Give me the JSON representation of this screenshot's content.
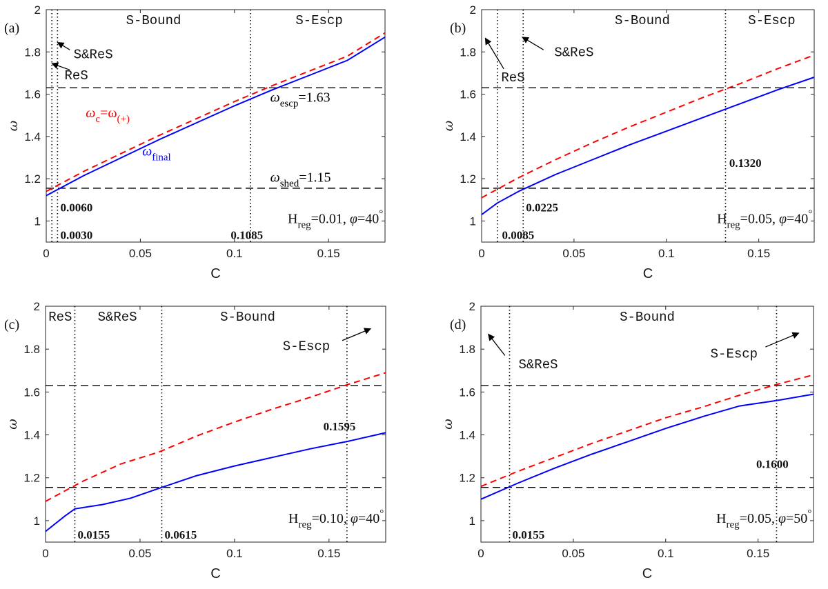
{
  "colors": {
    "omega_final": "#0000ff",
    "omega_c": "#ff0000",
    "guide": "#000000"
  },
  "chart_data": [
    {
      "type": "line",
      "panel_label": "(a)",
      "xlabel": "C",
      "ylabel": "ω",
      "xlim": [
        0,
        0.18
      ],
      "ylim": [
        0.9,
        2.0
      ],
      "xticks": [
        0,
        0.05,
        0.1,
        0.15
      ],
      "xtick_labels": [
        "0",
        "0.05",
        "0.1",
        "0.15"
      ],
      "yticks": [
        1.0,
        1.2,
        1.4,
        1.6,
        1.8,
        2.0
      ],
      "ytick_labels": [
        "1",
        "1.2",
        "1.4",
        "1.6",
        "1.8",
        "2"
      ],
      "hlines": [
        1.155,
        1.63
      ],
      "vlines": [
        0.003,
        0.006,
        0.1085
      ],
      "series": [
        {
          "name": "ω_final",
          "style": "solid",
          "color": "#0000ff",
          "x": [
            0,
            0.02,
            0.04,
            0.06,
            0.08,
            0.1,
            0.12,
            0.14,
            0.16,
            0.18
          ],
          "y": [
            1.12,
            1.215,
            1.3,
            1.385,
            1.465,
            1.545,
            1.62,
            1.69,
            1.76,
            1.87
          ]
        },
        {
          "name": "ω_c=ω_(+)",
          "style": "dashed",
          "color": "#ff0000",
          "x": [
            0,
            0.02,
            0.04,
            0.06,
            0.08,
            0.1,
            0.12,
            0.14,
            0.16,
            0.18
          ],
          "y": [
            1.14,
            1.235,
            1.32,
            1.405,
            1.485,
            1.565,
            1.64,
            1.71,
            1.78,
            1.89
          ]
        }
      ],
      "regions": [
        {
          "text": "S-Bound",
          "x": 0.057,
          "y": 1.955
        },
        {
          "text": "S-Escp",
          "x": 0.145,
          "y": 1.955
        }
      ],
      "annotations": [
        {
          "text": "S&ReS",
          "x": 0.025,
          "y": 1.79,
          "kind": "region"
        },
        {
          "text": "ReS",
          "x": 0.016,
          "y": 1.69,
          "kind": "region"
        },
        {
          "text": "0.0060",
          "x": 0.0075,
          "y": 1.065,
          "kind": "bold"
        },
        {
          "text": "0.0030",
          "x": 0.0075,
          "y": 0.935,
          "kind": "bold"
        },
        {
          "text": "0.1085",
          "x": 0.098,
          "y": 0.935,
          "kind": "bold"
        }
      ],
      "arrows": [
        {
          "from": [
            0.0125,
            1.81
          ],
          "to": [
            0.006,
            1.845
          ]
        },
        {
          "from": [
            0.0125,
            1.715
          ],
          "to": [
            0.003,
            1.745
          ]
        }
      ],
      "omega_labels": [
        {
          "symbol": "ω",
          "sub": "escp",
          "rest": "=1.63",
          "x": 0.119,
          "y": 1.565,
          "color": "#000000"
        },
        {
          "symbol": "ω",
          "sub": "shed",
          "rest": "=1.15",
          "x": 0.119,
          "y": 1.185,
          "color": "#000000"
        },
        {
          "symbol": "ω",
          "sub": "final",
          "rest": "",
          "x": 0.051,
          "y": 1.31,
          "color": "#0000ff"
        },
        {
          "symbol": "ω",
          "sub": "c",
          "rest": "=ω",
          "sub2": "(+)",
          "x": 0.021,
          "y": 1.49,
          "color": "#ff0000"
        }
      ],
      "params": {
        "h_sub": "reg",
        "h_val": "=0.01, ",
        "phi_val": "=40",
        "degree": "°",
        "x": 0.179,
        "y": 0.99
      }
    },
    {
      "type": "line",
      "panel_label": "(b)",
      "xlabel": "C",
      "ylabel": "ω",
      "xlim": [
        0,
        0.18
      ],
      "ylim": [
        0.9,
        2.0
      ],
      "xticks": [
        0,
        0.05,
        0.1,
        0.15
      ],
      "xtick_labels": [
        "0",
        "0.05",
        "0.1",
        "0.15"
      ],
      "yticks": [
        1.0,
        1.2,
        1.4,
        1.6,
        1.8,
        2.0
      ],
      "ytick_labels": [
        "1",
        "1.2",
        "1.4",
        "1.6",
        "1.8",
        "2"
      ],
      "hlines": [
        1.155,
        1.63
      ],
      "vlines": [
        0.0085,
        0.0225,
        0.132
      ],
      "series": [
        {
          "name": "ω_final",
          "style": "solid",
          "color": "#0000ff",
          "x": [
            0,
            0.0085,
            0.02,
            0.04,
            0.06,
            0.08,
            0.1,
            0.12,
            0.14,
            0.16,
            0.18
          ],
          "y": [
            1.03,
            1.085,
            1.14,
            1.22,
            1.29,
            1.36,
            1.425,
            1.49,
            1.555,
            1.62,
            1.68
          ]
        },
        {
          "name": "ω_c",
          "style": "dashed",
          "color": "#ff0000",
          "x": [
            0,
            0.02,
            0.04,
            0.06,
            0.08,
            0.1,
            0.12,
            0.14,
            0.16,
            0.18
          ],
          "y": [
            1.11,
            1.205,
            1.29,
            1.37,
            1.445,
            1.515,
            1.585,
            1.65,
            1.72,
            1.785
          ]
        }
      ],
      "regions": [
        {
          "text": "S-Bound",
          "x": 0.087,
          "y": 1.955
        },
        {
          "text": "S-Escp",
          "x": 0.157,
          "y": 1.955
        }
      ],
      "annotations": [
        {
          "text": "S&ReS",
          "x": 0.05,
          "y": 1.8,
          "kind": "region"
        },
        {
          "text": "ReS",
          "x": 0.017,
          "y": 1.68,
          "kind": "region"
        },
        {
          "text": "0.1320",
          "x": 0.134,
          "y": 1.275,
          "kind": "bold"
        },
        {
          "text": "0.0225",
          "x": 0.024,
          "y": 1.065,
          "kind": "bold"
        },
        {
          "text": "0.0085",
          "x": 0.011,
          "y": 0.935,
          "kind": "bold"
        }
      ],
      "arrows": [
        {
          "from": [
            0.0335,
            1.81
          ],
          "to": [
            0.022,
            1.87
          ]
        },
        {
          "from": [
            0.012,
            1.72
          ],
          "to": [
            0.002,
            1.865
          ]
        }
      ],
      "omega_labels": [],
      "params": {
        "h_sub": "reg",
        "h_val": "=0.05, ",
        "phi_val": "=40",
        "degree": "°",
        "x": 0.179,
        "y": 0.99
      }
    },
    {
      "type": "line",
      "panel_label": "(c)",
      "xlabel": "C",
      "ylabel": "ω",
      "xlim": [
        0,
        0.18
      ],
      "ylim": [
        0.9,
        2.0
      ],
      "xticks": [
        0,
        0.05,
        0.1,
        0.15
      ],
      "xtick_labels": [
        "0",
        "0.05",
        "0.1",
        "0.15"
      ],
      "yticks": [
        1.0,
        1.2,
        1.4,
        1.6,
        1.8,
        2.0
      ],
      "ytick_labels": [
        "1",
        "1.2",
        "1.4",
        "1.6",
        "1.8",
        "2"
      ],
      "hlines": [
        1.155,
        1.63
      ],
      "vlines": [
        0.0155,
        0.0615,
        0.1595
      ],
      "series": [
        {
          "name": "ω_final",
          "style": "solid",
          "color": "#0000ff",
          "x": [
            0,
            0.005,
            0.01,
            0.0155,
            0.03,
            0.045,
            0.0615,
            0.08,
            0.1,
            0.12,
            0.14,
            0.16,
            0.18
          ],
          "y": [
            0.95,
            0.985,
            1.02,
            1.055,
            1.075,
            1.105,
            1.155,
            1.21,
            1.255,
            1.295,
            1.335,
            1.37,
            1.41
          ]
        },
        {
          "name": "ω_c",
          "style": "dashed",
          "color": "#ff0000",
          "x": [
            0,
            0.02,
            0.04,
            0.06,
            0.08,
            0.1,
            0.12,
            0.14,
            0.16,
            0.18
          ],
          "y": [
            1.09,
            1.185,
            1.265,
            1.32,
            1.395,
            1.46,
            1.52,
            1.575,
            1.635,
            1.69
          ]
        }
      ],
      "regions": [
        {
          "text": "ReS",
          "x": 0.0078,
          "y": 1.955
        },
        {
          "text": "S&ReS",
          "x": 0.038,
          "y": 1.955
        },
        {
          "text": "S-Bound",
          "x": 0.107,
          "y": 1.955
        }
      ],
      "annotations": [
        {
          "text": "S-Escp",
          "x": 0.138,
          "y": 1.815,
          "kind": "region"
        },
        {
          "text": "0.1595",
          "x": 0.147,
          "y": 1.44,
          "kind": "bold"
        },
        {
          "text": "0.0155",
          "x": 0.017,
          "y": 0.935,
          "kind": "bold"
        },
        {
          "text": "0.0615",
          "x": 0.063,
          "y": 0.935,
          "kind": "bold"
        }
      ],
      "arrows": [
        {
          "from": [
            0.157,
            1.84
          ],
          "to": [
            0.172,
            1.895
          ]
        }
      ],
      "omega_labels": [],
      "params": {
        "h_sub": "reg",
        "h_val": "=0.10, ",
        "phi_val": "=40",
        "degree": "°",
        "x": 0.179,
        "y": 0.99
      }
    },
    {
      "type": "line",
      "panel_label": "(d)",
      "xlabel": "C",
      "ylabel": "ω",
      "xlim": [
        0,
        0.18
      ],
      "ylim": [
        0.9,
        2.0
      ],
      "xticks": [
        0,
        0.05,
        0.1,
        0.15
      ],
      "xtick_labels": [
        "0",
        "0.05",
        "0.1",
        "0.15"
      ],
      "yticks": [
        1.0,
        1.2,
        1.4,
        1.6,
        1.8,
        2.0
      ],
      "ytick_labels": [
        "1",
        "1.2",
        "1.4",
        "1.6",
        "1.8",
        "2"
      ],
      "hlines": [
        1.155,
        1.63
      ],
      "vlines": [
        0.0155,
        0.16
      ],
      "series": [
        {
          "name": "ω_final",
          "style": "solid",
          "color": "#0000ff",
          "x": [
            0,
            0.02,
            0.04,
            0.06,
            0.08,
            0.1,
            0.12,
            0.14,
            0.16,
            0.18
          ],
          "y": [
            1.1,
            1.175,
            1.245,
            1.31,
            1.37,
            1.43,
            1.485,
            1.535,
            1.56,
            1.59
          ]
        },
        {
          "name": "ω_c",
          "style": "dashed",
          "color": "#ff0000",
          "x": [
            0,
            0.02,
            0.04,
            0.06,
            0.08,
            0.1,
            0.12,
            0.14,
            0.16,
            0.18
          ],
          "y": [
            1.16,
            1.23,
            1.295,
            1.36,
            1.42,
            1.48,
            1.53,
            1.585,
            1.635,
            1.68
          ]
        }
      ],
      "regions": [
        {
          "text": "S-Bound",
          "x": 0.09,
          "y": 1.955
        }
      ],
      "annotations": [
        {
          "text": "S&ReS",
          "x": 0.031,
          "y": 1.73,
          "kind": "region"
        },
        {
          "text": "S-Escp",
          "x": 0.137,
          "y": 1.78,
          "kind": "region"
        },
        {
          "text": "0.1600",
          "x": 0.149,
          "y": 1.265,
          "kind": "bold"
        },
        {
          "text": "0.0155",
          "x": 0.017,
          "y": 0.935,
          "kind": "bold"
        }
      ],
      "arrows": [
        {
          "from": [
            0.013,
            1.77
          ],
          "to": [
            0.004,
            1.87
          ]
        },
        {
          "from": [
            0.154,
            1.81
          ],
          "to": [
            0.172,
            1.875
          ]
        }
      ],
      "omega_labels": [],
      "params": {
        "h_sub": "reg",
        "h_val": "=0.05, ",
        "phi_val": "=50",
        "degree": "°",
        "x": 0.179,
        "y": 0.99
      }
    }
  ]
}
